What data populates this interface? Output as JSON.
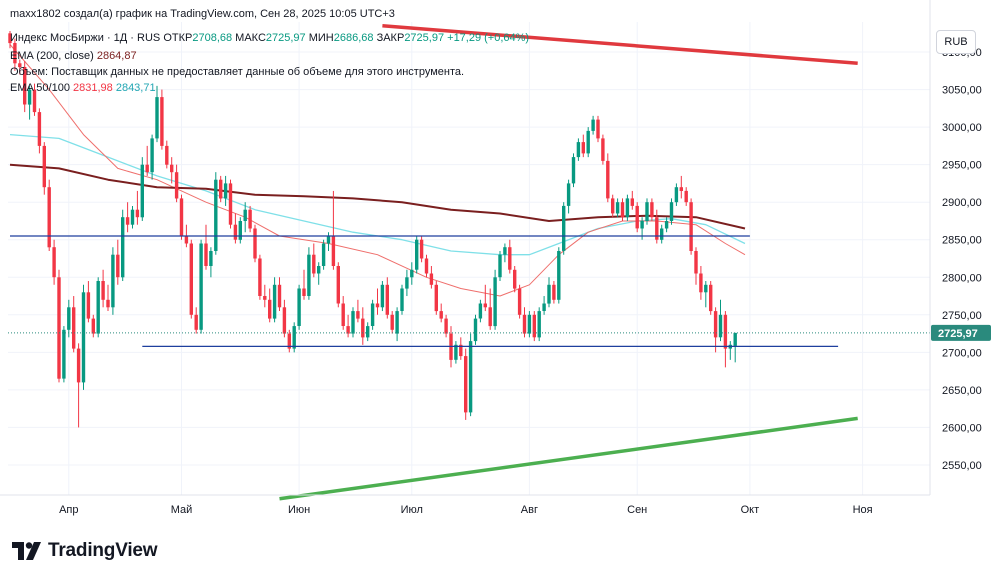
{
  "header": {
    "author_line": "maxx1802 создал(а) график на TradingView.com, Сен 28, 2025 10:05 UTC+3",
    "symbol": "Индекс МосБиржи · 1Д · RUS",
    "open_label": "ОТКР",
    "open_value": "2708,68",
    "high_label": "МАКС",
    "high_value": "2725,97",
    "low_label": "МИН",
    "low_value": "2686,68",
    "close_label": "ЗАКР",
    "close_value": "2725,97",
    "change_value": "+17,29 (+0,64%)",
    "ema200_label": "EMA (200, close)",
    "ema200_value": "2864,87",
    "volume_text": "Объем: Поставщик данных не предоставляет данные об объеме для этого инструмента.",
    "ema50100_label": "EMA 50/100",
    "ema50_value": "2831,98",
    "ema100_value": "2843,71"
  },
  "currency_button": "RUB",
  "brand": {
    "name": "TradingView"
  },
  "colors": {
    "up": "#089981",
    "down": "#f23645",
    "ema200": "#7a1f1f",
    "ema50": "#ef6f6c",
    "ema100": "#7fe0e8",
    "support": "#1e3f9e",
    "trend_top": "#e0393e",
    "trend_bottom": "#4caf50",
    "price_badge": "#2a8a7d"
  },
  "chart_data": {
    "type": "candlestick",
    "y_axis": {
      "min": 2510,
      "max": 3140,
      "ticks": [
        2550,
        2600,
        2650,
        2700,
        2750,
        2800,
        2850,
        2900,
        2950,
        3000,
        3050,
        3100
      ],
      "tick_labels": [
        "2550,00",
        "2600,00",
        "2650,00",
        "2700,00",
        "2750,00",
        "2800,00",
        "2850,00",
        "2900,00",
        "2950,00",
        "3000,00",
        "3050,00",
        "3100,00"
      ]
    },
    "x_axis": {
      "labels": [
        "Апр",
        "Май",
        "Июн",
        "Июл",
        "Авг",
        "Сен",
        "Окт",
        "Ноя"
      ],
      "label_candle_index": [
        12,
        35,
        59,
        82,
        106,
        128,
        151,
        174
      ]
    },
    "last_price": {
      "value": 2725.97,
      "label": "2725,97"
    },
    "candles": [
      [
        3125,
        3128,
        3105,
        3112
      ],
      [
        3112,
        3118,
        3075,
        3085
      ],
      [
        3085,
        3090,
        3070,
        3080
      ],
      [
        3080,
        3088,
        3020,
        3030
      ],
      [
        3030,
        3055,
        3010,
        3050
      ],
      [
        3050,
        3058,
        3015,
        3020
      ],
      [
        3020,
        3025,
        2965,
        2975
      ],
      [
        2975,
        2980,
        2910,
        2920
      ],
      [
        2920,
        2930,
        2835,
        2840
      ],
      [
        2840,
        2850,
        2790,
        2800
      ],
      [
        2800,
        2810,
        2660,
        2665
      ],
      [
        2665,
        2735,
        2660,
        2730
      ],
      [
        2730,
        2770,
        2720,
        2760
      ],
      [
        2760,
        2775,
        2700,
        2705
      ],
      [
        2705,
        2712,
        2600,
        2660
      ],
      [
        2660,
        2790,
        2650,
        2780
      ],
      [
        2780,
        2795,
        2740,
        2745
      ],
      [
        2745,
        2750,
        2720,
        2725
      ],
      [
        2725,
        2800,
        2720,
        2795
      ],
      [
        2795,
        2810,
        2760,
        2770
      ],
      [
        2770,
        2790,
        2755,
        2760
      ],
      [
        2760,
        2840,
        2750,
        2830
      ],
      [
        2830,
        2850,
        2790,
        2800
      ],
      [
        2800,
        2890,
        2795,
        2880
      ],
      [
        2880,
        2900,
        2860,
        2870
      ],
      [
        2870,
        2895,
        2865,
        2890
      ],
      [
        2890,
        2915,
        2870,
        2880
      ],
      [
        2880,
        2960,
        2875,
        2950
      ],
      [
        2950,
        2975,
        2935,
        2940
      ],
      [
        2940,
        2990,
        2930,
        2985
      ],
      [
        2985,
        3055,
        2980,
        3040
      ],
      [
        3040,
        3050,
        2970,
        2975
      ],
      [
        2975,
        2982,
        2945,
        2950
      ],
      [
        2950,
        2960,
        2925,
        2940
      ],
      [
        2940,
        2950,
        2900,
        2905
      ],
      [
        2905,
        2910,
        2850,
        2855
      ],
      [
        2855,
        2870,
        2840,
        2845
      ],
      [
        2845,
        2850,
        2745,
        2750
      ],
      [
        2750,
        2760,
        2725,
        2730
      ],
      [
        2730,
        2850,
        2725,
        2845
      ],
      [
        2845,
        2870,
        2810,
        2815
      ],
      [
        2815,
        2840,
        2800,
        2835
      ],
      [
        2835,
        2940,
        2830,
        2930
      ],
      [
        2930,
        2935,
        2900,
        2905
      ],
      [
        2905,
        2935,
        2895,
        2925
      ],
      [
        2925,
        2930,
        2865,
        2870
      ],
      [
        2870,
        2885,
        2845,
        2850
      ],
      [
        2850,
        2880,
        2845,
        2875
      ],
      [
        2875,
        2900,
        2860,
        2890
      ],
      [
        2890,
        2895,
        2860,
        2865
      ],
      [
        2865,
        2870,
        2820,
        2825
      ],
      [
        2825,
        2830,
        2770,
        2775
      ],
      [
        2775,
        2790,
        2760,
        2770
      ],
      [
        2770,
        2785,
        2740,
        2745
      ],
      [
        2745,
        2800,
        2740,
        2790
      ],
      [
        2790,
        2800,
        2755,
        2760
      ],
      [
        2760,
        2770,
        2720,
        2725
      ],
      [
        2725,
        2730,
        2700,
        2705
      ],
      [
        2705,
        2740,
        2700,
        2735
      ],
      [
        2735,
        2790,
        2730,
        2785
      ],
      [
        2785,
        2810,
        2770,
        2775
      ],
      [
        2775,
        2840,
        2770,
        2830
      ],
      [
        2830,
        2845,
        2800,
        2805
      ],
      [
        2805,
        2820,
        2790,
        2815
      ],
      [
        2815,
        2850,
        2810,
        2845
      ],
      [
        2845,
        2860,
        2835,
        2855
      ],
      [
        2855,
        2915,
        2810,
        2815
      ],
      [
        2815,
        2820,
        2760,
        2765
      ],
      [
        2765,
        2775,
        2730,
        2735
      ],
      [
        2735,
        2750,
        2720,
        2725
      ],
      [
        2725,
        2760,
        2720,
        2755
      ],
      [
        2755,
        2770,
        2740,
        2745
      ],
      [
        2745,
        2760,
        2710,
        2720
      ],
      [
        2720,
        2740,
        2715,
        2735
      ],
      [
        2735,
        2770,
        2730,
        2765
      ],
      [
        2765,
        2785,
        2750,
        2760
      ],
      [
        2760,
        2795,
        2755,
        2790
      ],
      [
        2790,
        2800,
        2745,
        2750
      ],
      [
        2750,
        2755,
        2725,
        2730
      ],
      [
        2725,
        2760,
        2715,
        2755
      ],
      [
        2755,
        2790,
        2750,
        2785
      ],
      [
        2785,
        2810,
        2775,
        2800
      ],
      [
        2800,
        2820,
        2790,
        2810
      ],
      [
        2810,
        2855,
        2805,
        2850
      ],
      [
        2850,
        2855,
        2820,
        2825
      ],
      [
        2825,
        2830,
        2800,
        2805
      ],
      [
        2805,
        2815,
        2785,
        2790
      ],
      [
        2790,
        2795,
        2750,
        2755
      ],
      [
        2755,
        2765,
        2740,
        2745
      ],
      [
        2745,
        2750,
        2720,
        2725
      ],
      [
        2725,
        2735,
        2680,
        2690
      ],
      [
        2690,
        2715,
        2685,
        2710
      ],
      [
        2710,
        2720,
        2690,
        2695
      ],
      [
        2695,
        2705,
        2610,
        2620
      ],
      [
        2620,
        2725,
        2615,
        2715
      ],
      [
        2715,
        2750,
        2710,
        2745
      ],
      [
        2745,
        2770,
        2740,
        2765
      ],
      [
        2765,
        2790,
        2755,
        2760
      ],
      [
        2760,
        2785,
        2730,
        2735
      ],
      [
        2735,
        2810,
        2730,
        2800
      ],
      [
        2800,
        2835,
        2795,
        2830
      ],
      [
        2830,
        2845,
        2820,
        2840
      ],
      [
        2840,
        2850,
        2805,
        2810
      ],
      [
        2810,
        2815,
        2780,
        2785
      ],
      [
        2785,
        2790,
        2745,
        2750
      ],
      [
        2750,
        2760,
        2720,
        2725
      ],
      [
        2725,
        2755,
        2720,
        2750
      ],
      [
        2750,
        2755,
        2715,
        2720
      ],
      [
        2720,
        2760,
        2715,
        2755
      ],
      [
        2755,
        2775,
        2750,
        2765
      ],
      [
        2765,
        2800,
        2760,
        2790
      ],
      [
        2790,
        2795,
        2765,
        2770
      ],
      [
        2770,
        2840,
        2765,
        2835
      ],
      [
        2835,
        2900,
        2830,
        2895
      ],
      [
        2895,
        2930,
        2885,
        2925
      ],
      [
        2925,
        2965,
        2920,
        2960
      ],
      [
        2960,
        2985,
        2955,
        2980
      ],
      [
        2980,
        2990,
        2960,
        2965
      ],
      [
        2965,
        3000,
        2960,
        2995
      ],
      [
        2995,
        3015,
        2990,
        3010
      ],
      [
        3010,
        3015,
        2980,
        2985
      ],
      [
        2985,
        2990,
        2950,
        2955
      ],
      [
        2955,
        2965,
        2900,
        2905
      ],
      [
        2905,
        2910,
        2880,
        2885
      ],
      [
        2885,
        2905,
        2880,
        2900
      ],
      [
        2900,
        2905,
        2875,
        2880
      ],
      [
        2880,
        2910,
        2875,
        2905
      ],
      [
        2905,
        2915,
        2890,
        2895
      ],
      [
        2895,
        2900,
        2860,
        2865
      ],
      [
        2865,
        2880,
        2850,
        2875
      ],
      [
        2875,
        2905,
        2870,
        2900
      ],
      [
        2900,
        2905,
        2875,
        2880
      ],
      [
        2880,
        2890,
        2845,
        2850
      ],
      [
        2850,
        2870,
        2845,
        2865
      ],
      [
        2865,
        2880,
        2860,
        2875
      ],
      [
        2875,
        2905,
        2870,
        2900
      ],
      [
        2900,
        2925,
        2895,
        2920
      ],
      [
        2920,
        2935,
        2905,
        2915
      ],
      [
        2915,
        2920,
        2895,
        2900
      ],
      [
        2900,
        2905,
        2830,
        2835
      ],
      [
        2835,
        2840,
        2790,
        2805
      ],
      [
        2805,
        2815,
        2770,
        2780
      ],
      [
        2780,
        2795,
        2760,
        2790
      ],
      [
        2790,
        2795,
        2750,
        2755
      ],
      [
        2755,
        2760,
        2700,
        2720
      ],
      [
        2720,
        2770,
        2715,
        2750
      ],
      [
        2750,
        2755,
        2680,
        2705
      ],
      [
        2705,
        2715,
        2690,
        2710
      ],
      [
        2708.68,
        2725.97,
        2686.68,
        2725.97
      ]
    ],
    "ema200": [
      [
        0,
        2950
      ],
      [
        10,
        2945
      ],
      [
        20,
        2930
      ],
      [
        30,
        2920
      ],
      [
        40,
        2918
      ],
      [
        50,
        2910
      ],
      [
        60,
        2908
      ],
      [
        70,
        2905
      ],
      [
        80,
        2900
      ],
      [
        90,
        2890
      ],
      [
        100,
        2885
      ],
      [
        110,
        2875
      ],
      [
        120,
        2880
      ],
      [
        130,
        2882
      ],
      [
        140,
        2880
      ],
      [
        150,
        2865
      ]
    ],
    "ema50": [
      [
        0,
        3110
      ],
      [
        8,
        3050
      ],
      [
        15,
        2990
      ],
      [
        22,
        2945
      ],
      [
        30,
        2930
      ],
      [
        40,
        2900
      ],
      [
        48,
        2880
      ],
      [
        55,
        2855
      ],
      [
        65,
        2845
      ],
      [
        75,
        2830
      ],
      [
        85,
        2800
      ],
      [
        92,
        2785
      ],
      [
        100,
        2775
      ],
      [
        106,
        2790
      ],
      [
        112,
        2830
      ],
      [
        118,
        2860
      ],
      [
        125,
        2875
      ],
      [
        132,
        2875
      ],
      [
        140,
        2870
      ],
      [
        146,
        2845
      ],
      [
        150,
        2830
      ]
    ],
    "ema100": [
      [
        0,
        2990
      ],
      [
        10,
        2985
      ],
      [
        20,
        2960
      ],
      [
        30,
        2935
      ],
      [
        40,
        2915
      ],
      [
        50,
        2890
      ],
      [
        60,
        2875
      ],
      [
        70,
        2860
      ],
      [
        80,
        2850
      ],
      [
        90,
        2835
      ],
      [
        100,
        2830
      ],
      [
        106,
        2830
      ],
      [
        112,
        2845
      ],
      [
        120,
        2865
      ],
      [
        128,
        2875
      ],
      [
        135,
        2878
      ],
      [
        142,
        2870
      ],
      [
        150,
        2845
      ]
    ],
    "support_lines": [
      {
        "from": [
          0,
          2855
        ],
        "to": [
          151,
          2855
        ]
      },
      {
        "from": [
          27,
          2708
        ],
        "to": [
          169,
          2708
        ]
      }
    ],
    "trend_lines": [
      {
        "name": "resistance",
        "from": [
          76,
          3135
        ],
        "to": [
          173,
          3085
        ]
      },
      {
        "name": "support",
        "from": [
          55,
          2505
        ],
        "to": [
          173,
          2612
        ]
      }
    ]
  }
}
